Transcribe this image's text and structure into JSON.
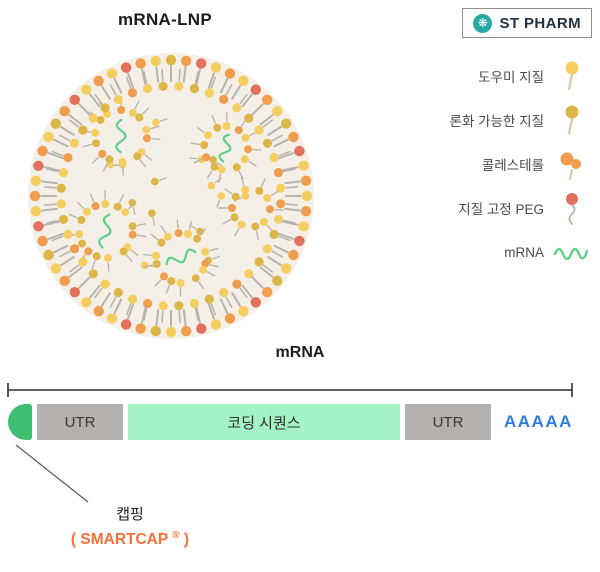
{
  "titles": {
    "lnp": "mRNA-LNP",
    "construct": "mRNA"
  },
  "logo": {
    "text": "ST PHARM",
    "icon_glyph": "❋",
    "icon_color": "#29a9a5"
  },
  "legend": {
    "items": [
      {
        "label": "도우미 지질",
        "type": "helper-lipid"
      },
      {
        "label": "론화 가능한 지질",
        "type": "ionizable-lipid"
      },
      {
        "label": "콜레스테롤",
        "type": "cholesterol"
      },
      {
        "label": "지질 고정 PEG",
        "type": "peg-lipid"
      },
      {
        "label": "mRNA",
        "type": "mrna"
      }
    ]
  },
  "lnp": {
    "colors": {
      "helper": "#f5ce62",
      "ionizable": "#ddb64a",
      "cholesterol": "#ef9d4f",
      "peg": "#e1705c",
      "mrna": "#5fcf8c",
      "tail": "#b8b4ad",
      "interior": "#f4efe7"
    }
  },
  "construct": {
    "segments": [
      {
        "label": "UTR",
        "type": "utr"
      },
      {
        "label": "코딩 시퀀스",
        "type": "coding"
      },
      {
        "label": "UTR",
        "type": "utr"
      }
    ],
    "tail_label": "AAAAA",
    "colors": {
      "cap": "#3ebe71",
      "utr": "#b3b0ad",
      "coding": "#a5f2c5",
      "tail_text": "#2e7ce0"
    },
    "cap": {
      "label": "캡핑",
      "sub_prefix": "( SMARTCAP ",
      "sub_reg": "®",
      "sub_suffix": " )"
    }
  }
}
